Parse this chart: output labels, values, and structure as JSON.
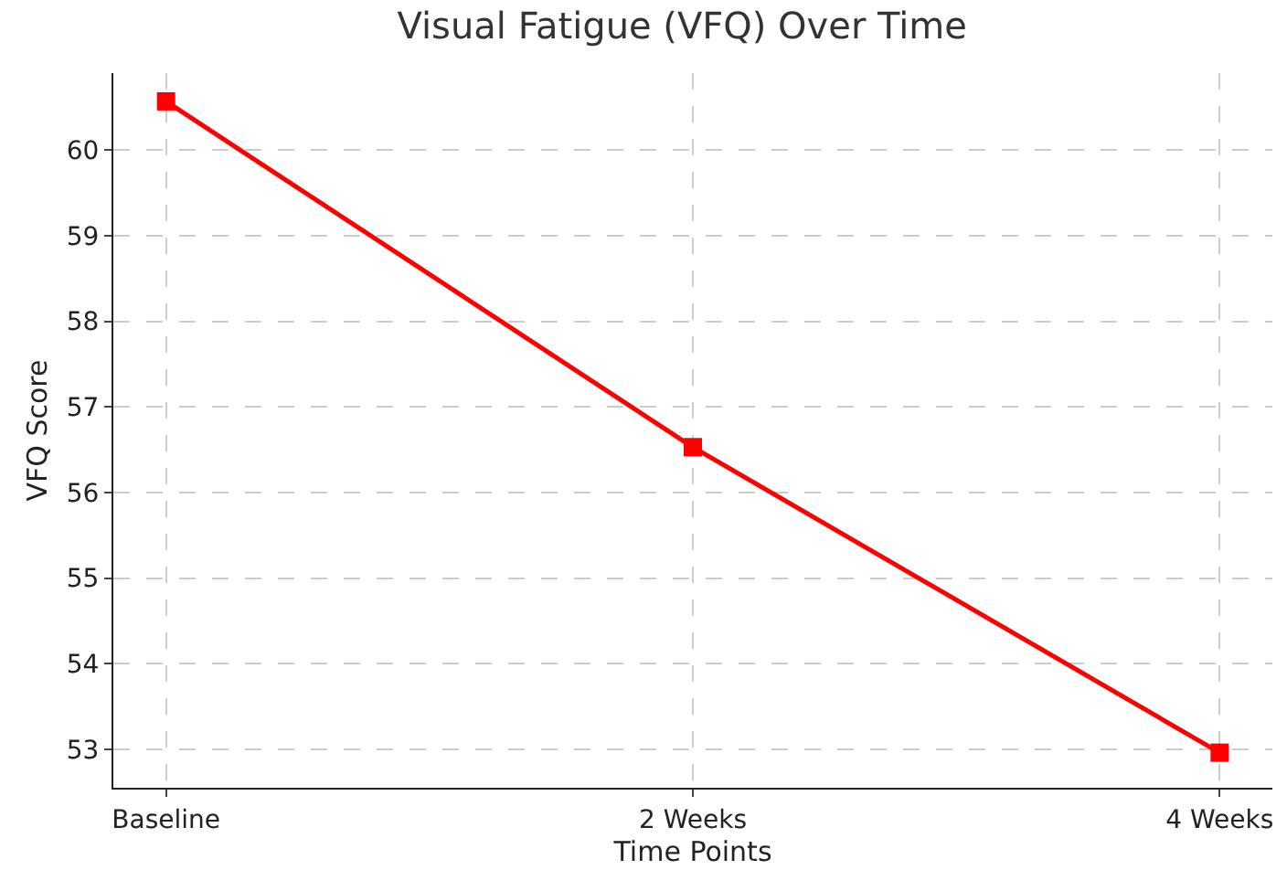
{
  "chart_data": {
    "type": "line",
    "title": "Visual Fatigue (VFQ) Over Time",
    "xlabel": "Time Points",
    "ylabel": "VFQ Score",
    "categories": [
      "Baseline",
      "2 Weeks",
      "4 Weeks"
    ],
    "series": [
      {
        "color": "#ff0000",
        "values": [
          60.57,
          56.53,
          52.96
        ]
      }
    ],
    "ylim": [
      52.55,
      60.9
    ],
    "yticks": [
      53,
      54,
      55,
      56,
      57,
      58,
      59,
      60
    ],
    "grid": true,
    "marker": "square",
    "line_style": "solid"
  }
}
